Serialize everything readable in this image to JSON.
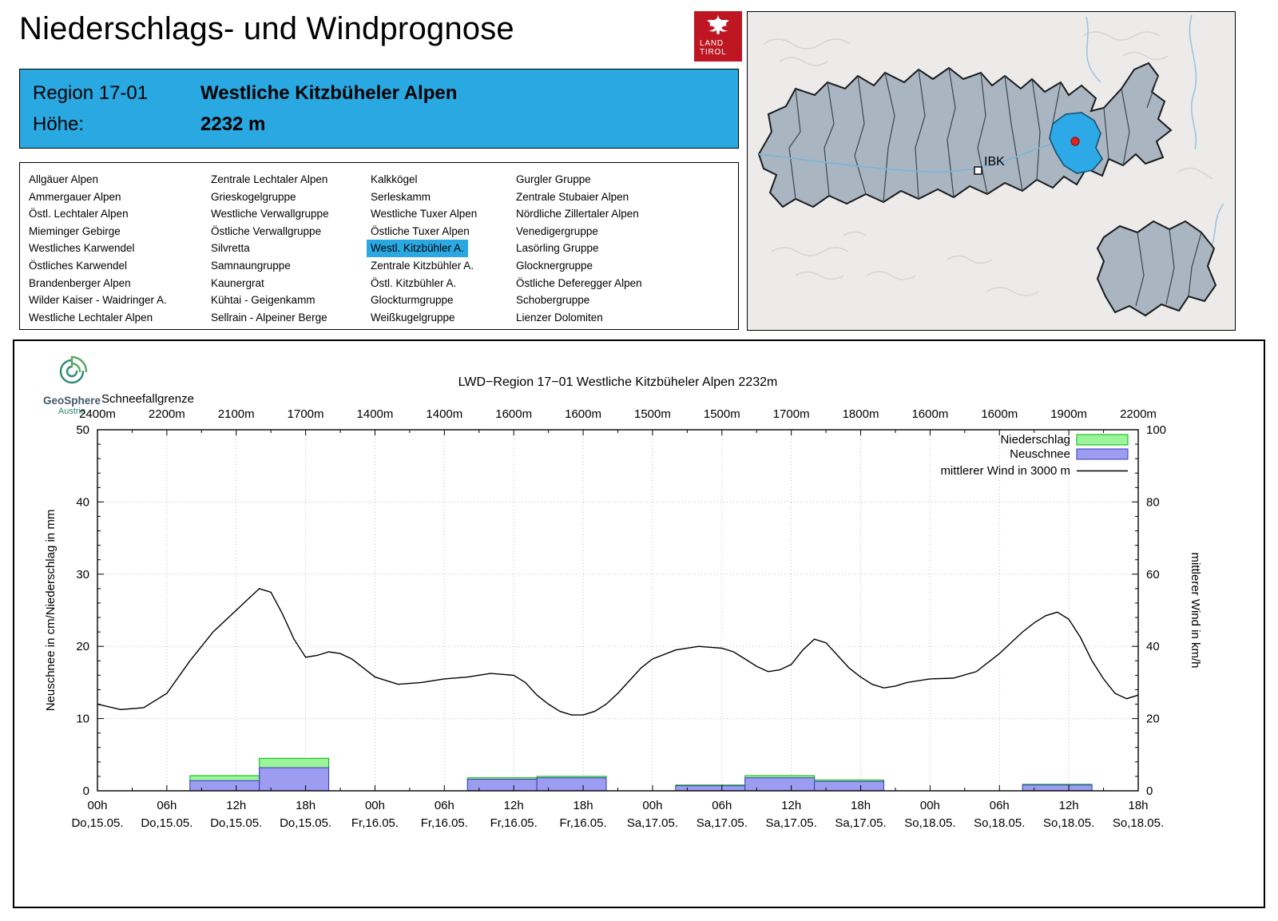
{
  "header": {
    "title": "Niederschlags- und Windprognose",
    "logo": {
      "line1": "LAND",
      "line2": "TIROL"
    }
  },
  "region_header": {
    "region_label": "Region 17-01",
    "region_name": "Westliche Kitzbüheler Alpen",
    "altitude_label": "Höhe:",
    "altitude_value": "2232 m"
  },
  "region_list": {
    "selected": "Westl. Kitzbühler A.",
    "columns": [
      [
        "Allgäuer Alpen",
        "Ammergauer Alpen",
        "Östl. Lechtaler Alpen",
        "Mieminger Gebirge",
        "Westliches Karwendel",
        "Östliches Karwendel",
        "Brandenberger Alpen",
        "Wilder Kaiser - Waidringer A.",
        "Westliche Lechtaler Alpen"
      ],
      [
        "Zentrale Lechtaler Alpen",
        "Grieskogelgruppe",
        "Westliche Verwallgruppe",
        "Östliche Verwallgruppe",
        "Silvretta",
        "Samnaungruppe",
        "Kaunergrat",
        "Kühtai - Geigenkamm",
        "Sellrain - Alpeiner Berge"
      ],
      [
        "Kalkkögel",
        "Serleskamm",
        "Westliche Tuxer Alpen",
        "Östliche Tuxer Alpen",
        "Westl. Kitzbühler A.",
        "Zentrale Kitzbühler A.",
        "Östl. Kitzbühler A.",
        "Glockturmgruppe",
        "Weißkugelgruppe"
      ],
      [
        "Gurgler Gruppe",
        "Zentrale Stubaier Alpen",
        "Nördliche Zillertaler Alpen",
        "Venedigergruppe",
        "Lasörling Gruppe",
        "Glocknergruppe",
        "Östliche Deferegger Alpen",
        "Schobergruppe",
        "Lienzer Dolomiten"
      ]
    ]
  },
  "map": {
    "city_label": "IBK"
  },
  "brand": {
    "name": "GeoSphere",
    "country": "Austria"
  },
  "colors": {
    "accent_blue": "#29a8e2",
    "map_region": "#a9b6c2",
    "map_selected": "#2ca9e6",
    "logo_red": "#be1622"
  },
  "chart_data": {
    "type": "composite",
    "title": "LWD−Region 17−01 Westliche Kitzbüheler Alpen 2232m",
    "snowline": {
      "label": "Schneefallgrenze",
      "values": [
        "2400m",
        "2200m",
        "2100m",
        "1700m",
        "1400m",
        "1400m",
        "1600m",
        "1600m",
        "1500m",
        "1500m",
        "1700m",
        "1800m",
        "1600m",
        "1600m",
        "1900m",
        "2200m"
      ]
    },
    "ylabel_left": "Neuschnee in cm/Niederschlag in mm",
    "ylabel_right": "mittlerer Wind in km/h",
    "ylim_left": [
      0,
      50
    ],
    "ylim_right": [
      0,
      100
    ],
    "total_hours": 90,
    "x_ticks": [
      {
        "time": "00h",
        "day": "Do,15.05."
      },
      {
        "time": "06h",
        "day": "Do,15.05."
      },
      {
        "time": "12h",
        "day": "Do,15.05."
      },
      {
        "time": "18h",
        "day": "Do,15.05."
      },
      {
        "time": "00h",
        "day": "Fr,16.05."
      },
      {
        "time": "06h",
        "day": "Fr,16.05."
      },
      {
        "time": "12h",
        "day": "Fr,16.05."
      },
      {
        "time": "18h",
        "day": "Fr,16.05."
      },
      {
        "time": "00h",
        "day": "Sa,17.05."
      },
      {
        "time": "06h",
        "day": "Sa,17.05."
      },
      {
        "time": "12h",
        "day": "Sa,17.05."
      },
      {
        "time": "18h",
        "day": "Sa,17.05."
      },
      {
        "time": "00h",
        "day": "So,18.05."
      },
      {
        "time": "06h",
        "day": "So,18.05."
      },
      {
        "time": "12h",
        "day": "So,18.05."
      },
      {
        "time": "18h",
        "day": "So,18.05."
      }
    ],
    "legend": [
      {
        "label": "Niederschlag",
        "type": "box",
        "fill": "#9bf49b",
        "stroke": "#00b400"
      },
      {
        "label": "Neuschnee",
        "type": "box",
        "fill": "#9c9cf0",
        "stroke": "#3a3abe"
      },
      {
        "label": "mittlerer Wind in 3000 m",
        "type": "line",
        "stroke": "#000000"
      }
    ],
    "bars": [
      {
        "start": 8,
        "end": 14,
        "precip_mm": 2.1,
        "snow_cm": 1.4
      },
      {
        "start": 14,
        "end": 20,
        "precip_mm": 4.5,
        "snow_cm": 3.2
      },
      {
        "start": 32,
        "end": 38,
        "precip_mm": 1.8,
        "snow_cm": 1.6
      },
      {
        "start": 38,
        "end": 44,
        "precip_mm": 2.0,
        "snow_cm": 1.8
      },
      {
        "start": 50,
        "end": 56,
        "precip_mm": 0.8,
        "snow_cm": 0.7
      },
      {
        "start": 56,
        "end": 62,
        "precip_mm": 2.1,
        "snow_cm": 1.8
      },
      {
        "start": 62,
        "end": 68,
        "precip_mm": 1.5,
        "snow_cm": 1.3
      },
      {
        "start": 80,
        "end": 86,
        "precip_mm": 0.9,
        "snow_cm": 0.8
      }
    ],
    "wind_kmh": {
      "t": [
        0,
        2,
        4,
        6,
        8,
        10,
        12,
        13,
        14,
        15,
        16,
        17,
        18,
        19,
        20,
        21,
        22,
        24,
        26,
        28,
        30,
        32,
        34,
        36,
        37,
        38,
        39,
        40,
        41,
        42,
        43,
        44,
        45,
        46,
        47,
        48,
        50,
        52,
        54,
        55,
        56,
        57,
        58,
        59,
        60,
        61,
        62,
        63,
        64,
        65,
        66,
        67,
        68,
        69,
        70,
        72,
        74,
        76,
        78,
        80,
        81,
        82,
        83,
        84,
        85,
        86,
        87,
        88,
        89,
        90
      ],
      "v": [
        24,
        22.5,
        23,
        27,
        36,
        44,
        50,
        53,
        56,
        55,
        49,
        42,
        37,
        37.5,
        38.5,
        38,
        36.5,
        31.5,
        29.5,
        30,
        31,
        31.5,
        32.5,
        32,
        30,
        26.5,
        24,
        22,
        21,
        21,
        22,
        24,
        27,
        30.5,
        34,
        36.5,
        39,
        40,
        39.5,
        38.5,
        36.5,
        34.5,
        33,
        33.5,
        35,
        39,
        42,
        41,
        37.5,
        34,
        31.5,
        29.5,
        28.5,
        29,
        30,
        31,
        31.2,
        33,
        38,
        44,
        46.5,
        48.5,
        49.5,
        47.5,
        42.5,
        36,
        31,
        27,
        25.5,
        26.5
      ]
    }
  }
}
